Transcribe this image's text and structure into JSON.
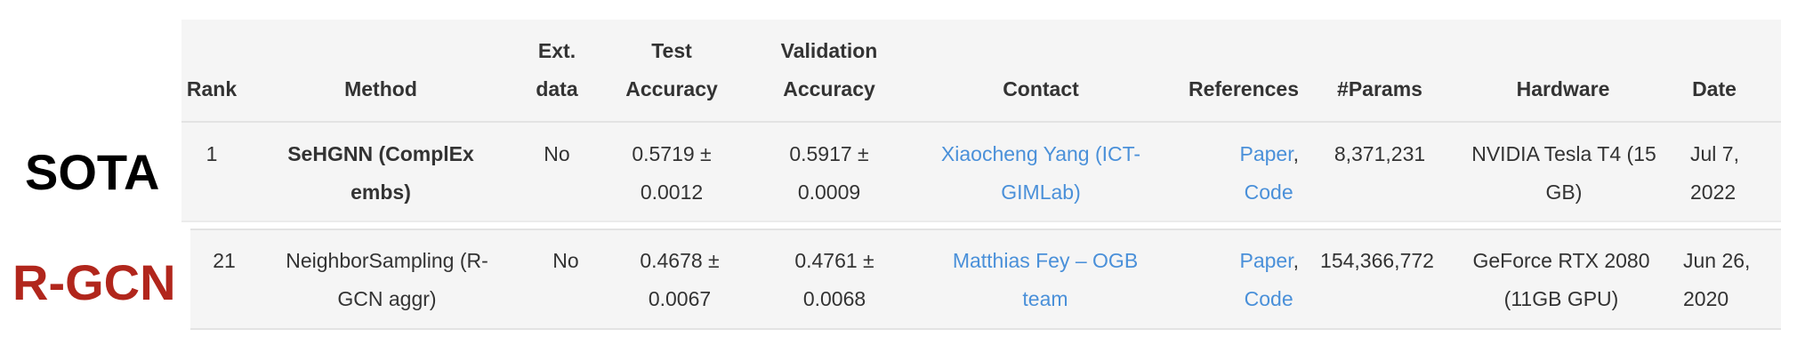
{
  "labels": {
    "sota": "SOTA",
    "rgcn": "R-GCN"
  },
  "headers": {
    "rank": "Rank",
    "method": "Method",
    "ext_data": "Ext. data",
    "test_accuracy": "Test Accuracy",
    "validation_accuracy": "Validation Accuracy",
    "contact": "Contact",
    "references": "References",
    "params": "#Params",
    "hardware": "Hardware",
    "date": "Date"
  },
  "rows": [
    {
      "rank": "1",
      "method": "SeHGNN (ComplEx embs)",
      "ext_data": "No",
      "test_accuracy": "0.5719 ± 0.0012",
      "validation_accuracy": "0.5917 ± 0.0009",
      "contact": "Xiaocheng Yang (ICT-GIMLab)",
      "ref_paper": "Paper",
      "ref_sep": ",",
      "ref_code": "Code",
      "params": "8,371,231",
      "hardware": "NVIDIA Tesla T4 (15 GB)",
      "date": "Jul 7, 2022"
    },
    {
      "rank": "21",
      "method": "NeighborSampling (R-GCN aggr)",
      "ext_data": "No",
      "test_accuracy": "0.4678 ± 0.0067",
      "validation_accuracy": "0.4761 ± 0.0068",
      "contact": "Matthias Fey – OGB team",
      "ref_paper": "Paper",
      "ref_sep": ",",
      "ref_code": "Code",
      "params": "154,366,772",
      "hardware": "GeForce RTX 2080 (11GB GPU)",
      "date": "Jun 26, 2020"
    }
  ],
  "colors": {
    "link": "#4a90d9",
    "rgcn_label": "#b1261c",
    "panel": "#f5f5f5"
  }
}
